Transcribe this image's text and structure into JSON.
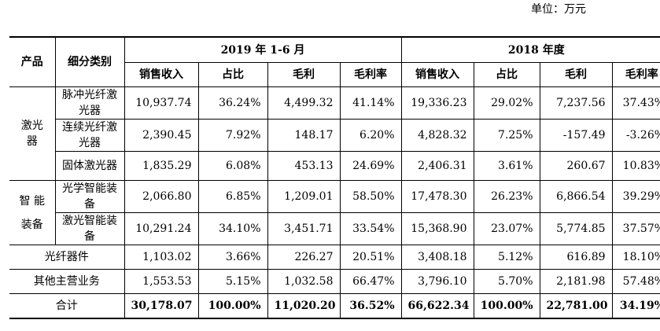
{
  "unit_label": "单位：万元",
  "headers": {
    "product": "产品",
    "subcategory": "细分类别",
    "period1": "2019 年 1-6 月",
    "period2": "2018 年度",
    "cols": [
      "销售收入",
      "占比",
      "毛利",
      "毛利率",
      "销售收入",
      "占比",
      "毛利",
      "毛利率"
    ]
  },
  "groups": {
    "laser": "激光器",
    "smart": "智 能 装备"
  },
  "rows": [
    {
      "sub": "脉冲光纤激光器",
      "vals": [
        "10,937.74",
        "36.24%",
        "4,499.32",
        "41.14%",
        "19,336.23",
        "29.02%",
        "7,237.56",
        "37.43%"
      ]
    },
    {
      "sub": "连续光纤激光器",
      "vals": [
        "2,390.45",
        "7.92%",
        "148.17",
        "6.20%",
        "4,828.32",
        "7.25%",
        "-157.49",
        "-3.26%"
      ]
    },
    {
      "sub": "固体激光器",
      "vals": [
        "1,835.29",
        "6.08%",
        "453.13",
        "24.69%",
        "2,406.31",
        "3.61%",
        "260.67",
        "10.83%"
      ]
    },
    {
      "sub": "光学智能装备",
      "vals": [
        "2,066.80",
        "6.85%",
        "1,209.01",
        "58.50%",
        "17,478.30",
        "26.23%",
        "6,866.54",
        "39.29%"
      ]
    },
    {
      "sub": "激光智能装备",
      "vals": [
        "10,291.24",
        "34.10%",
        "3,451.71",
        "33.54%",
        "15,368.90",
        "23.07%",
        "5,774.85",
        "37.57%"
      ]
    },
    {
      "sub": "光纤器件",
      "vals": [
        "1,103.02",
        "3.66%",
        "226.27",
        "20.51%",
        "3,408.18",
        "5.12%",
        "616.89",
        "18.10%"
      ]
    },
    {
      "sub": "其他主营业务",
      "vals": [
        "1,553.53",
        "5.15%",
        "1,032.58",
        "66.47%",
        "3,796.10",
        "5.70%",
        "2,181.98",
        "57.48%"
      ]
    }
  ],
  "total": {
    "label": "合计",
    "vals": [
      "30,178.07",
      "100.00%",
      "11,020.20",
      "36.52%",
      "66,622.34",
      "100.00%",
      "22,781.00",
      "34.19%"
    ]
  }
}
